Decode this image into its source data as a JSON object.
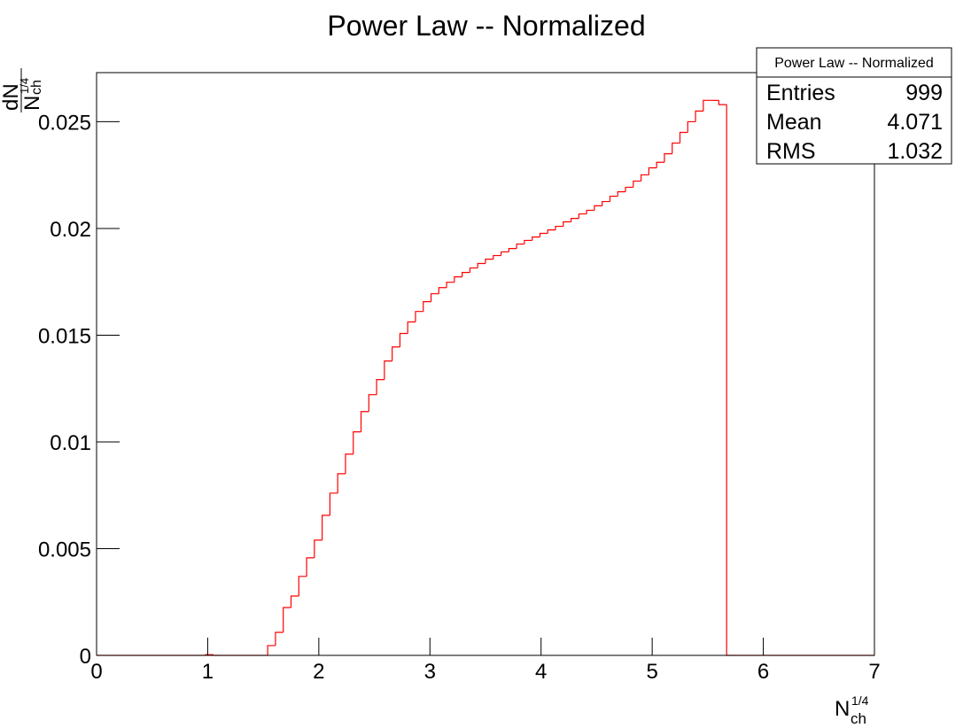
{
  "chart_data": {
    "type": "histogram",
    "title": "Power Law -- Normalized",
    "x_label": {
      "base": "N",
      "sub": "ch",
      "sup": "1/4"
    },
    "y_label": {
      "numerator": "dN",
      "base": "N",
      "sub": "ch",
      "sup": "1/4"
    },
    "color": "#ff0000",
    "xlim": [
      0,
      7
    ],
    "ylim": [
      0,
      0.0273
    ],
    "xticks": [
      0,
      1,
      2,
      3,
      4,
      5,
      6,
      7
    ],
    "yticks": [
      0,
      0.005,
      0.01,
      0.015,
      0.02,
      0.025
    ],
    "bins": [
      0,
      0.07,
      0.14,
      0.21,
      0.28,
      0.35,
      0.42,
      0.49,
      0.56,
      0.63,
      0.7,
      0.77,
      0.84,
      0.91,
      0.98,
      1.05,
      1.12,
      1.19,
      1.26,
      1.33,
      1.4,
      1.47,
      1.54,
      1.61,
      1.68,
      1.75,
      1.82,
      1.89,
      1.96,
      2.03,
      2.1,
      2.17,
      2.24,
      2.31,
      2.38,
      2.45,
      2.52,
      2.59,
      2.66,
      2.73,
      2.8,
      2.87,
      2.94,
      3.01,
      3.08,
      3.15,
      3.22,
      3.29,
      3.36,
      3.43,
      3.5,
      3.57,
      3.64,
      3.71,
      3.78,
      3.85,
      3.92,
      3.99,
      4.06,
      4.13,
      4.2,
      4.27,
      4.34,
      4.41,
      4.48,
      4.55,
      4.62,
      4.69,
      4.76,
      4.83,
      4.9,
      4.97,
      5.04,
      5.11,
      5.18,
      5.25,
      5.32,
      5.39,
      5.46,
      5.53,
      5.6,
      5.67,
      5.74,
      5.81,
      5.88,
      5.95,
      6.02,
      6.09,
      6.16,
      6.23,
      6.3,
      6.37,
      6.44,
      6.51,
      6.58,
      6.65,
      6.72,
      6.79,
      6.86,
      6.93,
      7
    ],
    "values": [
      0,
      0,
      0,
      0,
      0,
      0,
      0,
      0,
      0,
      0,
      0,
      0,
      0,
      0,
      3e-05,
      0,
      0,
      0,
      0,
      0,
      0,
      0,
      0.00046,
      0.00108,
      0.00224,
      0.00278,
      0.0037,
      0.00457,
      0.0054,
      0.00656,
      0.0076,
      0.00851,
      0.00943,
      0.01047,
      0.01142,
      0.01221,
      0.01292,
      0.01379,
      0.01445,
      0.01508,
      0.01562,
      0.01611,
      0.01657,
      0.01694,
      0.01723,
      0.01748,
      0.01773,
      0.01794,
      0.01815,
      0.01836,
      0.01856,
      0.01873,
      0.0189,
      0.01906,
      0.01927,
      0.01944,
      0.0196,
      0.01977,
      0.01993,
      0.0201,
      0.02031,
      0.02047,
      0.02068,
      0.02085,
      0.02106,
      0.02126,
      0.02151,
      0.02172,
      0.02193,
      0.02222,
      0.02251,
      0.02284,
      0.0231,
      0.0235,
      0.024,
      0.0245,
      0.025,
      0.0255,
      0.026,
      0.026,
      0.0258,
      0,
      0,
      0,
      0,
      0,
      0,
      0,
      0,
      0,
      0,
      0,
      0,
      0,
      0,
      0,
      0,
      0,
      0,
      0
    ],
    "stats": {
      "title": "Power Law -- Normalized",
      "rows": [
        [
          "Entries",
          999
        ],
        [
          "Mean",
          4.071
        ],
        [
          "RMS",
          1.032
        ]
      ]
    }
  }
}
